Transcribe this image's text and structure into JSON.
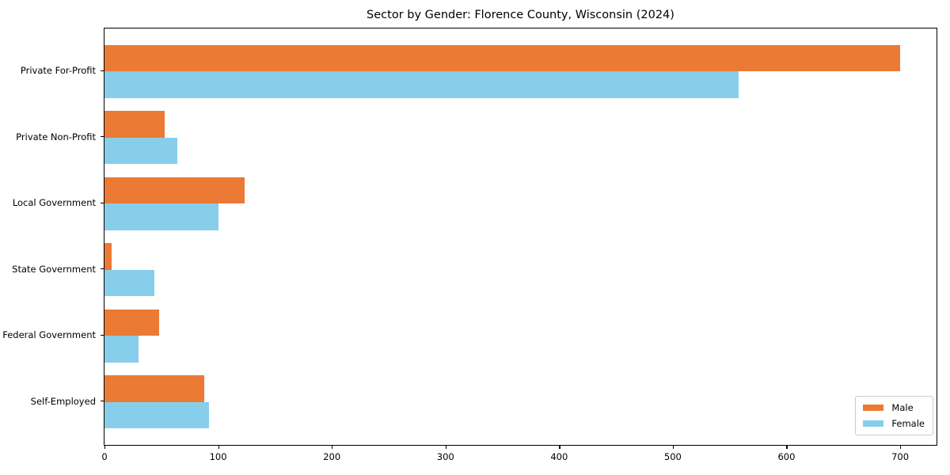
{
  "chart_data": {
    "type": "bar",
    "orientation": "horizontal",
    "title": "Sector by Gender: Florence County, Wisconsin (2024)",
    "categories": [
      "Private For-Profit",
      "Private Non-Profit",
      "Local Government",
      "State Government",
      "Federal Government",
      "Self-Employed"
    ],
    "series": [
      {
        "name": "Male",
        "color": "#eb7a34",
        "values": [
          700,
          53,
          123,
          6,
          48,
          88
        ]
      },
      {
        "name": "Female",
        "color": "#87ceeb",
        "values": [
          558,
          64,
          100,
          44,
          30,
          92
        ]
      }
    ],
    "x_ticks": [
      0,
      100,
      200,
      300,
      400,
      500,
      600,
      700
    ],
    "xlim": [
      0,
      732
    ],
    "xlabel": "",
    "ylabel": "",
    "grid": false,
    "legend_position": "lower right",
    "colors": {
      "axis": "#000000",
      "legend_border": "#cccccc",
      "background": "#ffffff"
    }
  }
}
